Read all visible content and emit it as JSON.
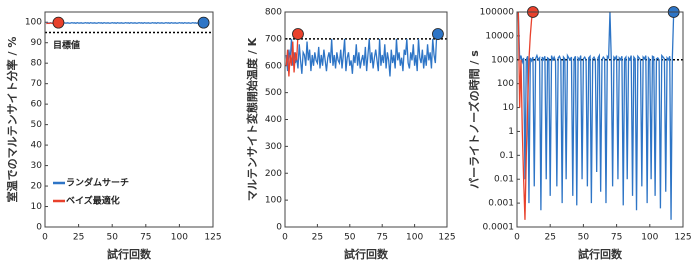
{
  "chart_data": [
    {
      "type": "line",
      "xlabel": "試行回数",
      "ylabel": "室温でのマルテンサイト分率 / %",
      "xlim": [
        0,
        125
      ],
      "xticks": [
        0,
        25,
        50,
        75,
        100,
        125
      ],
      "ylim": [
        0,
        105
      ],
      "yticks": [
        0,
        10,
        20,
        30,
        40,
        50,
        60,
        70,
        80,
        90,
        100
      ],
      "target": {
        "value": 95,
        "label": "目標値"
      },
      "legend": "lower left",
      "end_marker": true,
      "series": [
        {
          "name": "ランダムサーチ",
          "color": "#2e75c6",
          "x": [
            1,
            2,
            3,
            4,
            5,
            6,
            7,
            8,
            9,
            10,
            11,
            12,
            13,
            14,
            15,
            16,
            17,
            18,
            19,
            20,
            21,
            22,
            23,
            24,
            25,
            26,
            27,
            28,
            29,
            30,
            31,
            32,
            33,
            34,
            35,
            36,
            37,
            38,
            39,
            40,
            41,
            42,
            43,
            44,
            45,
            46,
            47,
            48,
            49,
            50,
            51,
            52,
            53,
            54,
            55,
            56,
            57,
            58,
            59,
            60,
            61,
            62,
            63,
            64,
            65,
            66,
            67,
            68,
            69,
            70,
            71,
            72,
            73,
            74,
            75,
            76,
            77,
            78,
            79,
            80,
            81,
            82,
            83,
            84,
            85,
            86,
            87,
            88,
            89,
            90,
            91,
            92,
            93,
            94,
            95,
            96,
            97,
            98,
            99,
            100,
            101,
            102,
            103,
            104,
            105,
            106,
            107,
            108,
            109,
            110,
            111,
            112,
            113,
            114,
            115,
            116,
            117,
            118
          ],
          "values": [
            99.6,
            99.7,
            99.5,
            99.8,
            99.6,
            99.6,
            99.7,
            99.5,
            99.6,
            99.8,
            99.6,
            99.7,
            99.5,
            99.8,
            99.6,
            99.6,
            99.7,
            99.5,
            99.6,
            99.8,
            99.6,
            99.7,
            99.5,
            99.8,
            99.6,
            99.6,
            99.7,
            99.5,
            99.6,
            99.8,
            99.6,
            99.7,
            99.5,
            99.8,
            99.6,
            99.6,
            99.7,
            99.5,
            99.6,
            99.8,
            99.6,
            99.7,
            99.5,
            99.8,
            99.6,
            99.6,
            99.7,
            99.5,
            99.6,
            99.8,
            99.6,
            99.7,
            99.5,
            99.8,
            99.6,
            99.6,
            99.7,
            99.5,
            99.6,
            99.8,
            99.6,
            99.7,
            99.5,
            99.8,
            99.6,
            99.6,
            99.7,
            99.5,
            99.6,
            99.8,
            99.6,
            99.7,
            99.5,
            99.8,
            99.6,
            99.6,
            99.7,
            99.5,
            99.6,
            99.8,
            99.6,
            99.7,
            99.5,
            99.8,
            99.6,
            99.6,
            99.7,
            99.5,
            99.6,
            99.8,
            99.6,
            99.7,
            99.5,
            99.8,
            99.6,
            99.6,
            99.7,
            99.5,
            99.6,
            99.8,
            99.6,
            99.7,
            99.5,
            99.8,
            99.6,
            99.6,
            99.7,
            99.5,
            99.6,
            99.8,
            99.6,
            99.7,
            99.5,
            99.8,
            99.6,
            99.6,
            99.7,
            99.8
          ]
        },
        {
          "name": "ベイズ最適化",
          "color": "#e8412c",
          "x": [
            1,
            2,
            3,
            4,
            5,
            6,
            7,
            8,
            9,
            10
          ],
          "values": [
            99.3,
            99.5,
            99.4,
            99.6,
            99.5,
            99.4,
            99.6,
            99.5,
            99.7,
            99.8
          ]
        }
      ]
    },
    {
      "type": "line",
      "xlabel": "試行回数",
      "ylabel": "マルテンサイト変態開始温度 / K",
      "xlim": [
        0,
        125
      ],
      "xticks": [
        0,
        25,
        50,
        75,
        100,
        125
      ],
      "ylim": [
        0,
        800
      ],
      "yticks": [
        0,
        100,
        200,
        300,
        400,
        500,
        600,
        700,
        800
      ],
      "target": {
        "value": 700
      },
      "end_marker": true,
      "series": [
        {
          "color": "#2e75c6",
          "x": [
            1,
            2,
            3,
            4,
            5,
            6,
            7,
            8,
            9,
            10,
            11,
            12,
            13,
            14,
            15,
            16,
            17,
            18,
            19,
            20,
            21,
            22,
            23,
            24,
            25,
            26,
            27,
            28,
            29,
            30,
            31,
            32,
            33,
            34,
            35,
            36,
            37,
            38,
            39,
            40,
            41,
            42,
            43,
            44,
            45,
            46,
            47,
            48,
            49,
            50,
            51,
            52,
            53,
            54,
            55,
            56,
            57,
            58,
            59,
            60,
            61,
            62,
            63,
            64,
            65,
            66,
            67,
            68,
            69,
            70,
            71,
            72,
            73,
            74,
            75,
            76,
            77,
            78,
            79,
            80,
            81,
            82,
            83,
            84,
            85,
            86,
            87,
            88,
            89,
            90,
            91,
            92,
            93,
            94,
            95,
            96,
            97,
            98,
            99,
            100,
            101,
            102,
            103,
            104,
            105,
            106,
            107,
            108,
            109,
            110,
            111,
            112,
            113,
            114,
            115,
            116,
            117,
            118
          ],
          "values": [
            640,
            580,
            660,
            620,
            700,
            600,
            650,
            610,
            630,
            590,
            680,
            620,
            570,
            650,
            640,
            600,
            690,
            620,
            660,
            580,
            640,
            600,
            650,
            620,
            610,
            670,
            590,
            640,
            600,
            660,
            620,
            580,
            630,
            650,
            610,
            700,
            600,
            640,
            590,
            650,
            620,
            610,
            660,
            590,
            640,
            700,
            580,
            630,
            650,
            600,
            620,
            570,
            640,
            610,
            680,
            600,
            650,
            590,
            620,
            640,
            600,
            670,
            580,
            640,
            700,
            610,
            650,
            590,
            630,
            660,
            620,
            580,
            700,
            600,
            640,
            610,
            680,
            590,
            650,
            620,
            560,
            660,
            610,
            640,
            590,
            700,
            620,
            650,
            600,
            630,
            580,
            660,
            640,
            700,
            610,
            590,
            650,
            620,
            680,
            600,
            640,
            580,
            700,
            630,
            610,
            660,
            590,
            640,
            600,
            680,
            620,
            650,
            590,
            700,
            640,
            610,
            710,
            718
          ]
        },
        {
          "color": "#e8412c",
          "x": [
            1,
            2,
            3,
            4,
            5,
            6,
            7,
            8,
            9,
            10
          ],
          "values": [
            600,
            660,
            560,
            640,
            600,
            690,
            575,
            650,
            620,
            718
          ]
        }
      ]
    },
    {
      "type": "line",
      "xlabel": "試行回数",
      "ylabel": "パーライトノーズの時間 / s",
      "xlim": [
        0,
        125
      ],
      "xticks": [
        0,
        25,
        50,
        75,
        100,
        125
      ],
      "log_y": true,
      "ylim": [
        0.0001,
        100000
      ],
      "yticks": [
        0.0001,
        0.001,
        0.01,
        0.1,
        1,
        10,
        100,
        1000,
        10000,
        100000
      ],
      "target": {
        "value": 1000
      },
      "end_marker": true,
      "series": [
        {
          "color": "#2e75c6",
          "x": [
            1,
            2,
            3,
            4,
            5,
            6,
            7,
            8,
            9,
            10,
            11,
            12,
            13,
            14,
            15,
            16,
            17,
            18,
            19,
            20,
            21,
            22,
            23,
            24,
            25,
            26,
            27,
            28,
            29,
            30,
            31,
            32,
            33,
            34,
            35,
            36,
            37,
            38,
            39,
            40,
            41,
            42,
            43,
            44,
            45,
            46,
            47,
            48,
            49,
            50,
            51,
            52,
            53,
            54,
            55,
            56,
            57,
            58,
            59,
            60,
            61,
            62,
            63,
            64,
            65,
            66,
            67,
            68,
            69,
            70,
            71,
            72,
            73,
            74,
            75,
            76,
            77,
            78,
            79,
            80,
            81,
            82,
            83,
            84,
            85,
            86,
            87,
            88,
            89,
            90,
            91,
            92,
            93,
            94,
            95,
            96,
            97,
            98,
            99,
            100,
            101,
            102,
            103,
            104,
            105,
            106,
            107,
            108,
            109,
            110,
            111,
            112,
            113,
            114,
            115,
            116,
            117,
            118
          ],
          "values": [
            100000,
            1000,
            1500,
            800,
            1200,
            0.01,
            1000,
            1400,
            0.001,
            1200,
            900,
            1300,
            0.005,
            1100,
            1500,
            1000,
            1200,
            0.0005,
            1300,
            1000,
            1400,
            0.01,
            1200,
            1100,
            0.002,
            1500,
            1000,
            1300,
            900,
            0.005,
            1200,
            1400,
            1000,
            0.001,
            1300,
            1100,
            0.01,
            1500,
            1200,
            1000,
            1300,
            0.002,
            1100,
            1400,
            0.0008,
            1200,
            1000,
            1500,
            0.01,
            1100,
            1300,
            1000,
            0.005,
            1200,
            1400,
            0.001,
            1100,
            1300,
            1000,
            0.02,
            1200,
            1500,
            0.003,
            1000,
            1300,
            1100,
            0.001,
            1400,
            1200,
            100000,
            1000,
            0.005,
            1300,
            1100,
            1500,
            0.01,
            1200,
            1000,
            1400,
            0.0008,
            1100,
            1300,
            0.01,
            1200,
            1000,
            1500,
            0.002,
            1300,
            1100,
            0.0005,
            1400,
            1200,
            1000,
            0.005,
            1300,
            1100,
            1500,
            0.001,
            1200,
            1000,
            0.01,
            1400,
            1300,
            0.002,
            1100,
            1200,
            1000,
            0.0006,
            1500,
            1300,
            1100,
            0.003,
            1200,
            1000,
            1400,
            0.0002,
            1300,
            100000
          ]
        },
        {
          "color": "#e8412c",
          "x": [
            1,
            2,
            3,
            4,
            5,
            6,
            7,
            8,
            9,
            10,
            11,
            12
          ],
          "values": [
            100000,
            10,
            1000,
            1,
            0.01,
            0.0002,
            0.1,
            10,
            1000,
            10000,
            50000,
            100000
          ]
        }
      ]
    }
  ]
}
